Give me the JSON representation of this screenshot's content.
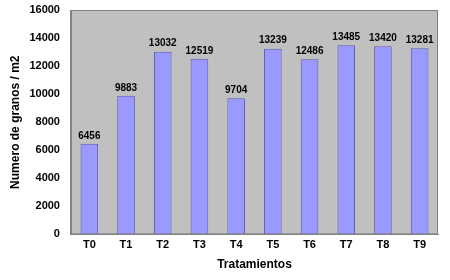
{
  "chart_data": {
    "type": "bar",
    "categories": [
      "T0",
      "T1",
      "T2",
      "T3",
      "T4",
      "T5",
      "T6",
      "T7",
      "T8",
      "T9"
    ],
    "values": [
      6456,
      9883,
      13032,
      12519,
      9704,
      13239,
      12486,
      13485,
      13420,
      13281
    ],
    "color": "#9999ff",
    "x_label": "Tratamientos",
    "y_label": "Numero de granos / m2",
    "ylim": [
      0,
      16000
    ],
    "yticks": [
      0,
      2000,
      4000,
      6000,
      8000,
      10000,
      12000,
      14000,
      16000
    ],
    "grid": false,
    "data_labels": true
  }
}
